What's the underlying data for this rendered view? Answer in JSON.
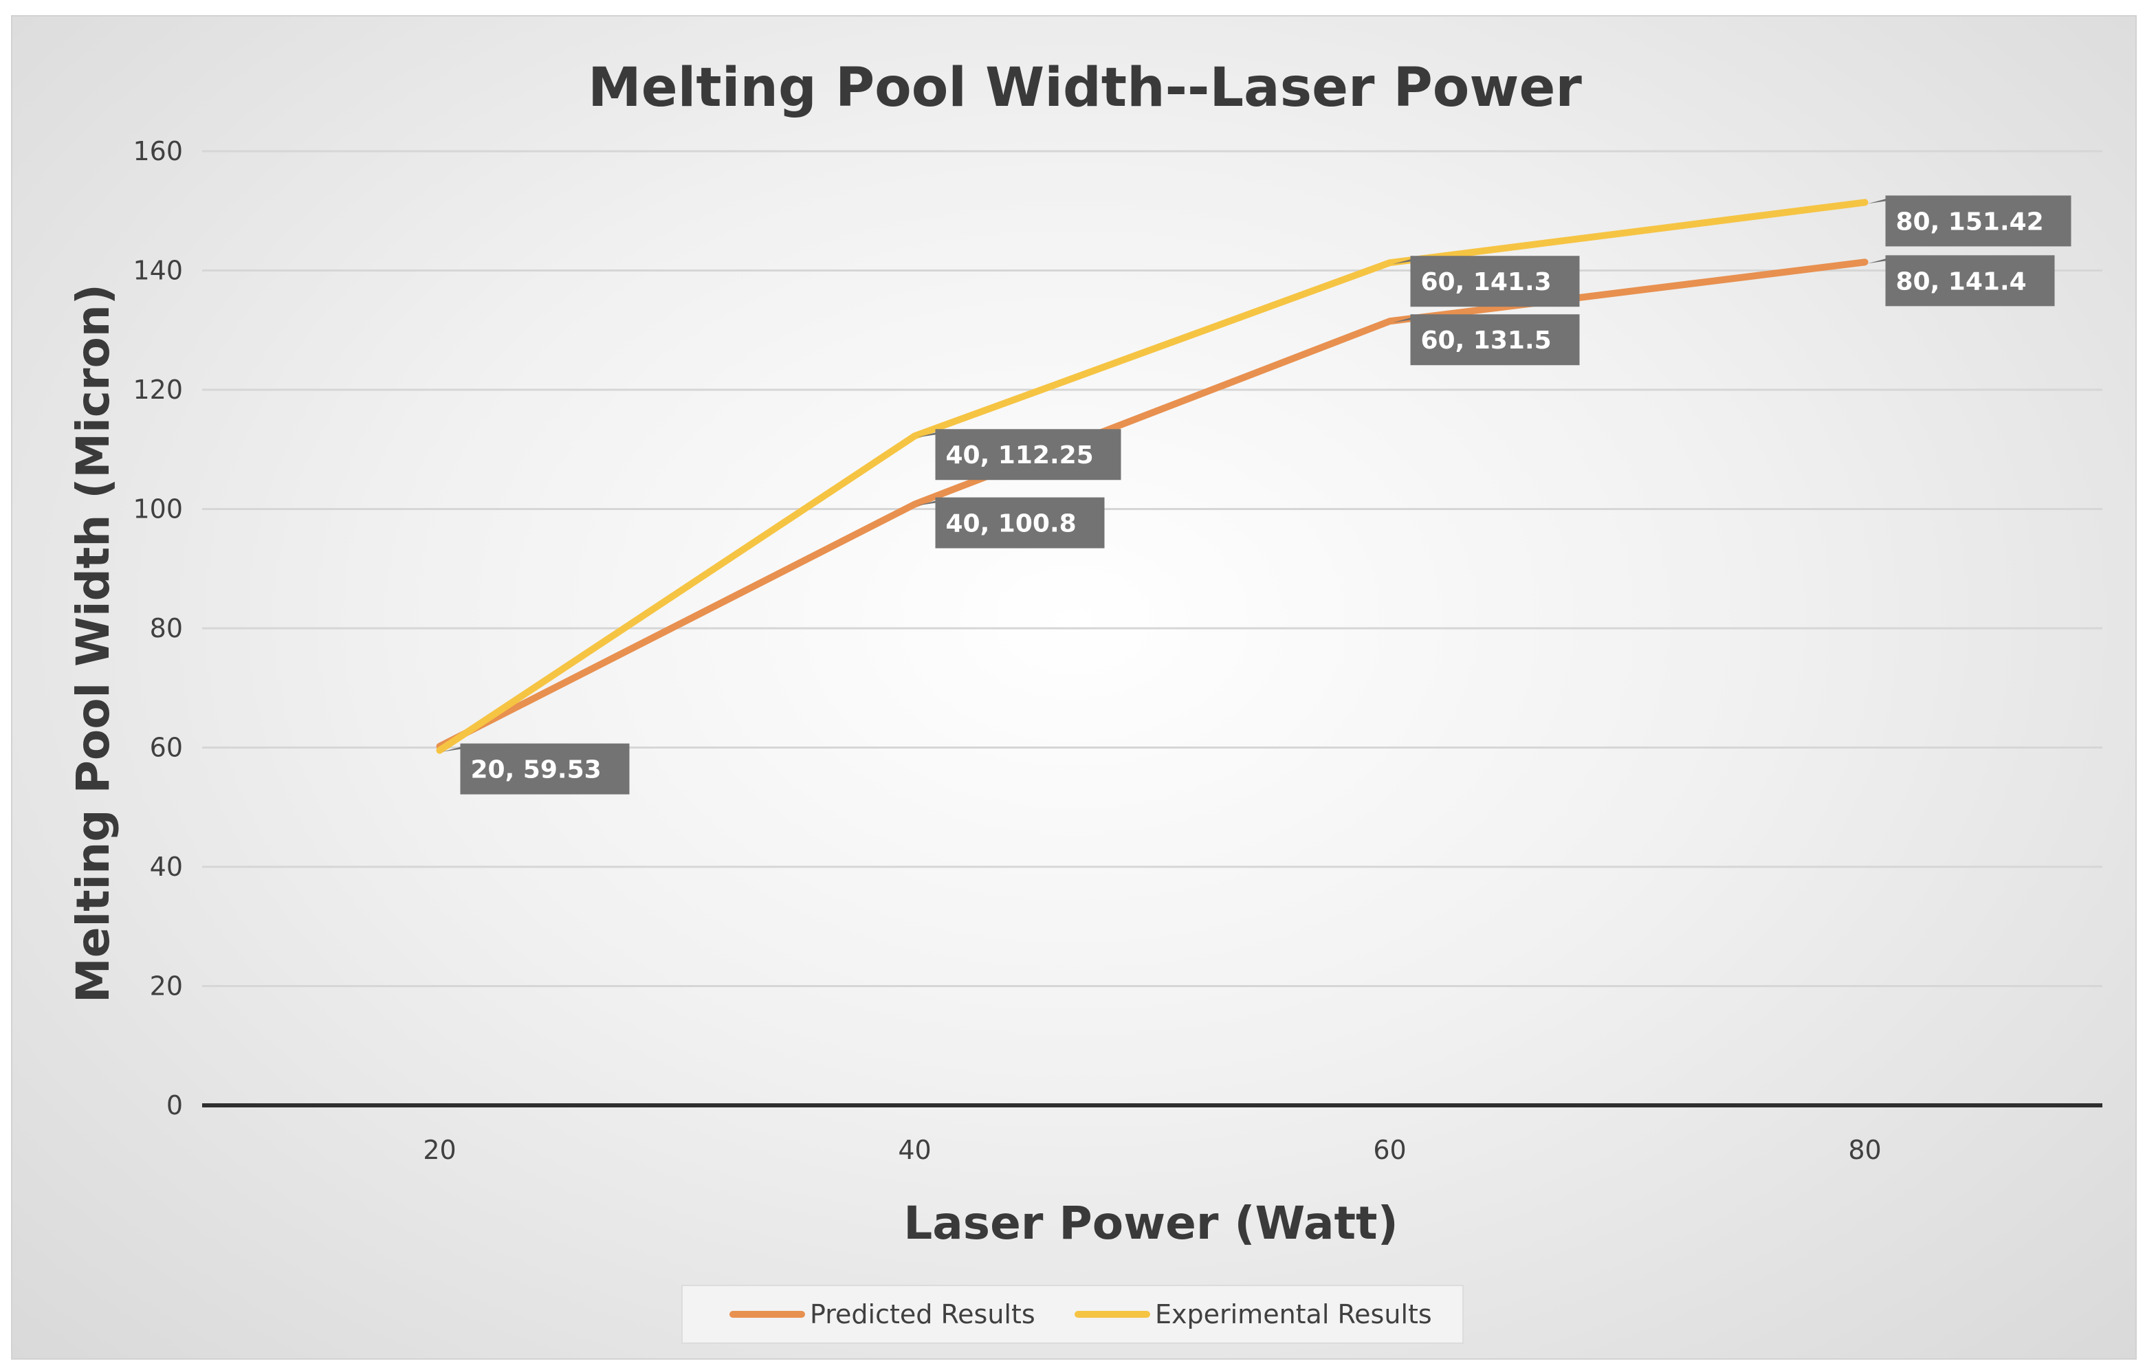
{
  "chart_data": {
    "type": "line",
    "title": "Melting Pool Width--Laser Power",
    "xlabel": "Laser Power (Watt)",
    "ylabel": "Melting Pool Width (Micron)",
    "x": [
      20,
      40,
      60,
      80
    ],
    "x_ticks": [
      "20",
      "40",
      "60",
      "80"
    ],
    "xlim": [
      10,
      90
    ],
    "y_ticks": [
      "0",
      "20",
      "40",
      "60",
      "80",
      "100",
      "120",
      "140",
      "160"
    ],
    "ylim": [
      0,
      160
    ],
    "grid": true,
    "legend_position": "bottom",
    "series": [
      {
        "name": "Predicted Results",
        "color": "#E8904F",
        "values": [
          60.2,
          100.8,
          131.5,
          141.4
        ],
        "data_labels": [
          "",
          "40, 100.8",
          "60, 131.5",
          "80, 141.4"
        ]
      },
      {
        "name": "Experimental Results",
        "color": "#F6C443",
        "values": [
          59.53,
          112.25,
          141.3,
          151.42
        ],
        "data_labels": [
          "20, 59.53",
          "40, 112.25",
          "60, 141.3",
          "80, 151.42"
        ]
      }
    ]
  }
}
